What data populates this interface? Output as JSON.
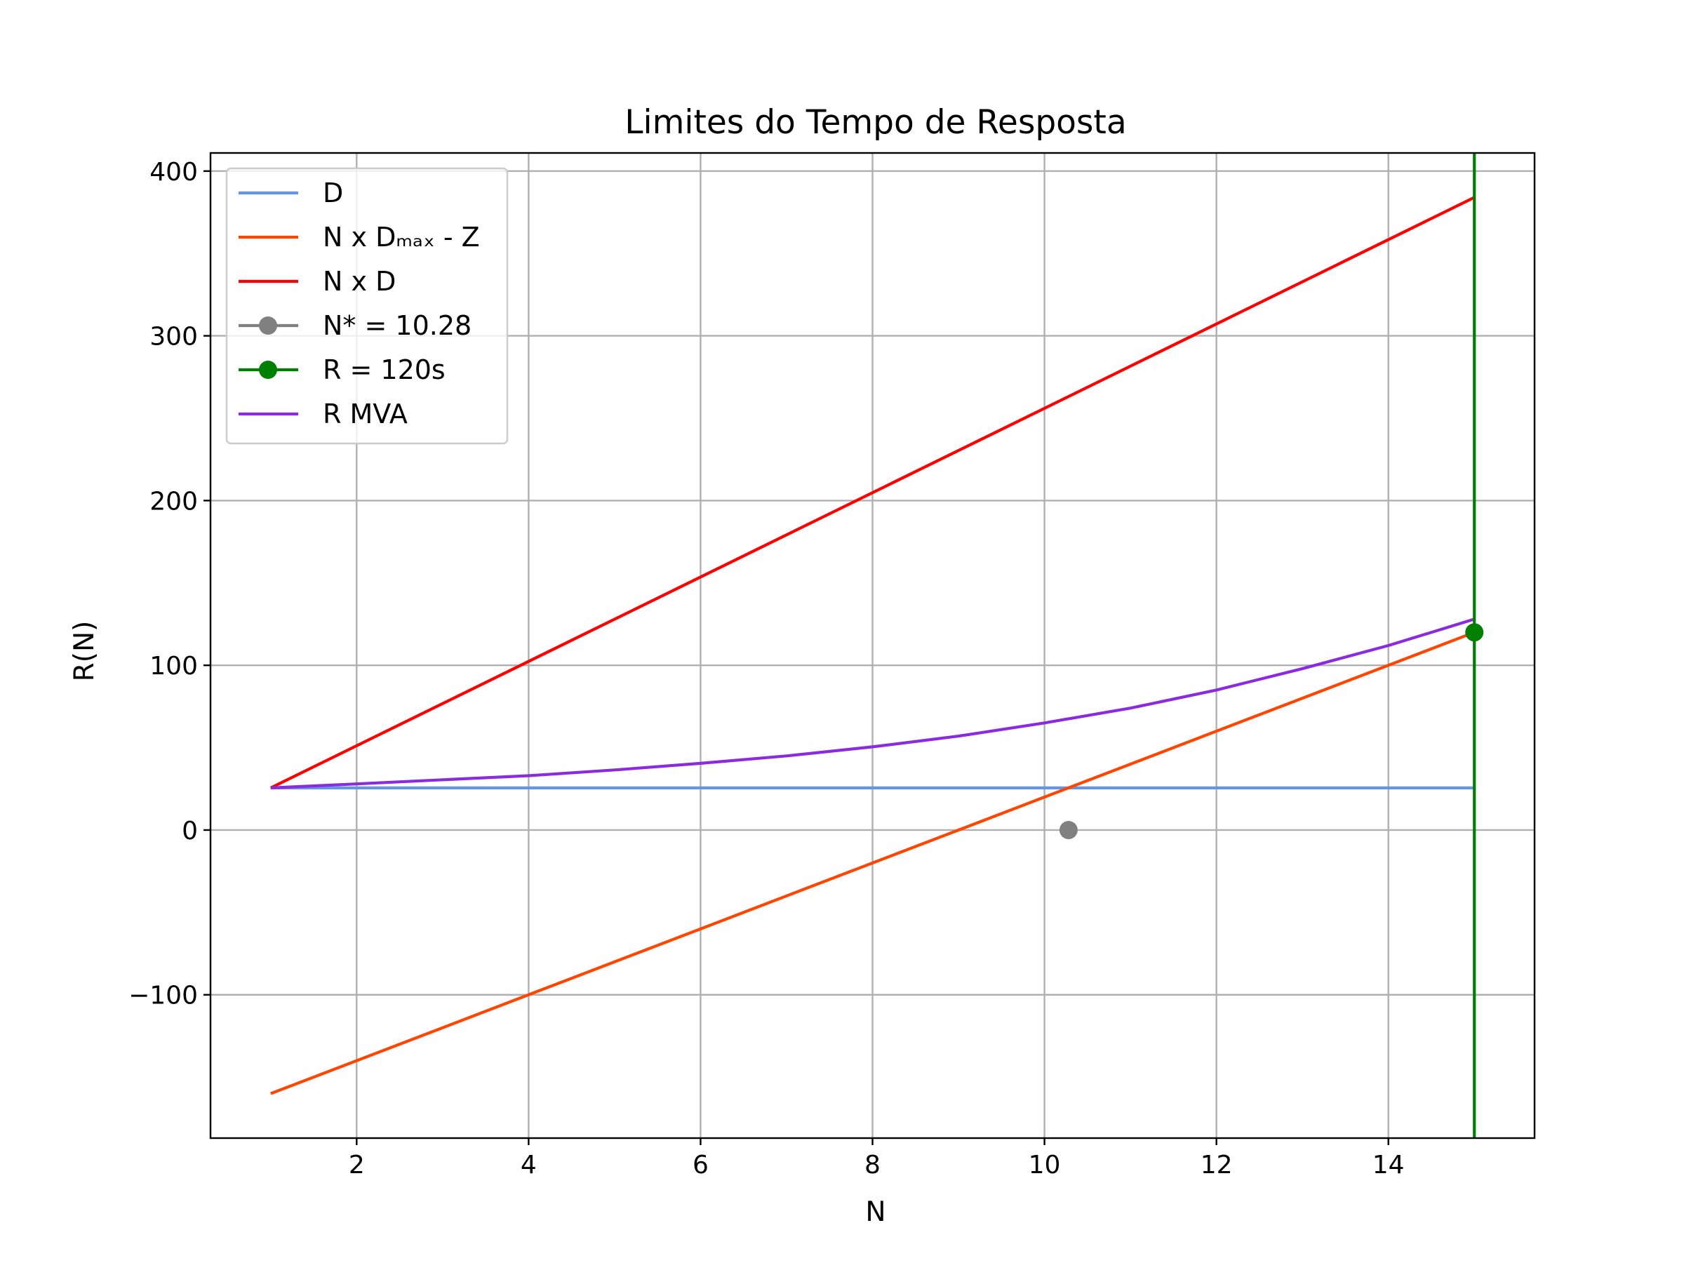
{
  "chart_data": {
    "type": "line",
    "title": "Limites do Tempo de Resposta",
    "xlabel": "N",
    "ylabel": "R(N)",
    "xlim": [
      0.3,
      15.7
    ],
    "ylim": [
      -187,
      411
    ],
    "xticks": [
      2,
      4,
      6,
      8,
      10,
      12,
      14
    ],
    "xtick_labels": [
      "2",
      "4",
      "6",
      "8",
      "10",
      "12",
      "14"
    ],
    "yticks": [
      -100,
      0,
      100,
      200,
      300,
      400
    ],
    "ytick_labels": [
      "−100",
      "0",
      "100",
      "200",
      "300",
      "400"
    ],
    "grid": true,
    "legend_position": "upper-left",
    "series": [
      {
        "name": "D",
        "color": "#6495ed",
        "kind": "line",
        "x": [
          1,
          15
        ],
        "y": [
          25.6,
          25.6
        ]
      },
      {
        "name": "N x Dₘₐₓ - Z",
        "color": "#ff4500",
        "kind": "line",
        "x": [
          1,
          15
        ],
        "y": [
          -160,
          120
        ]
      },
      {
        "name": "N x D",
        "color": "#ff0000",
        "kind": "line",
        "x": [
          1,
          15
        ],
        "y": [
          25.6,
          384
        ]
      },
      {
        "name": "N* = 10.28",
        "color": "#808080",
        "kind": "point",
        "x": [
          10.28
        ],
        "y": [
          0
        ]
      },
      {
        "name": "R = 120s",
        "color": "#008000",
        "kind": "point",
        "x": [
          15
        ],
        "y": [
          120
        ]
      },
      {
        "name": "R MVA",
        "color": "#8a2be2",
        "kind": "line",
        "x": [
          1,
          2,
          3,
          4,
          5,
          6,
          7,
          8,
          9,
          10,
          11,
          12,
          13,
          14,
          15
        ],
        "y": [
          25.6,
          28,
          30.5,
          33,
          36.5,
          40.5,
          45,
          50.5,
          57,
          65,
          74,
          85,
          98,
          112,
          128
        ]
      }
    ],
    "vertical_line": {
      "x": 15,
      "color": "#008000"
    }
  }
}
